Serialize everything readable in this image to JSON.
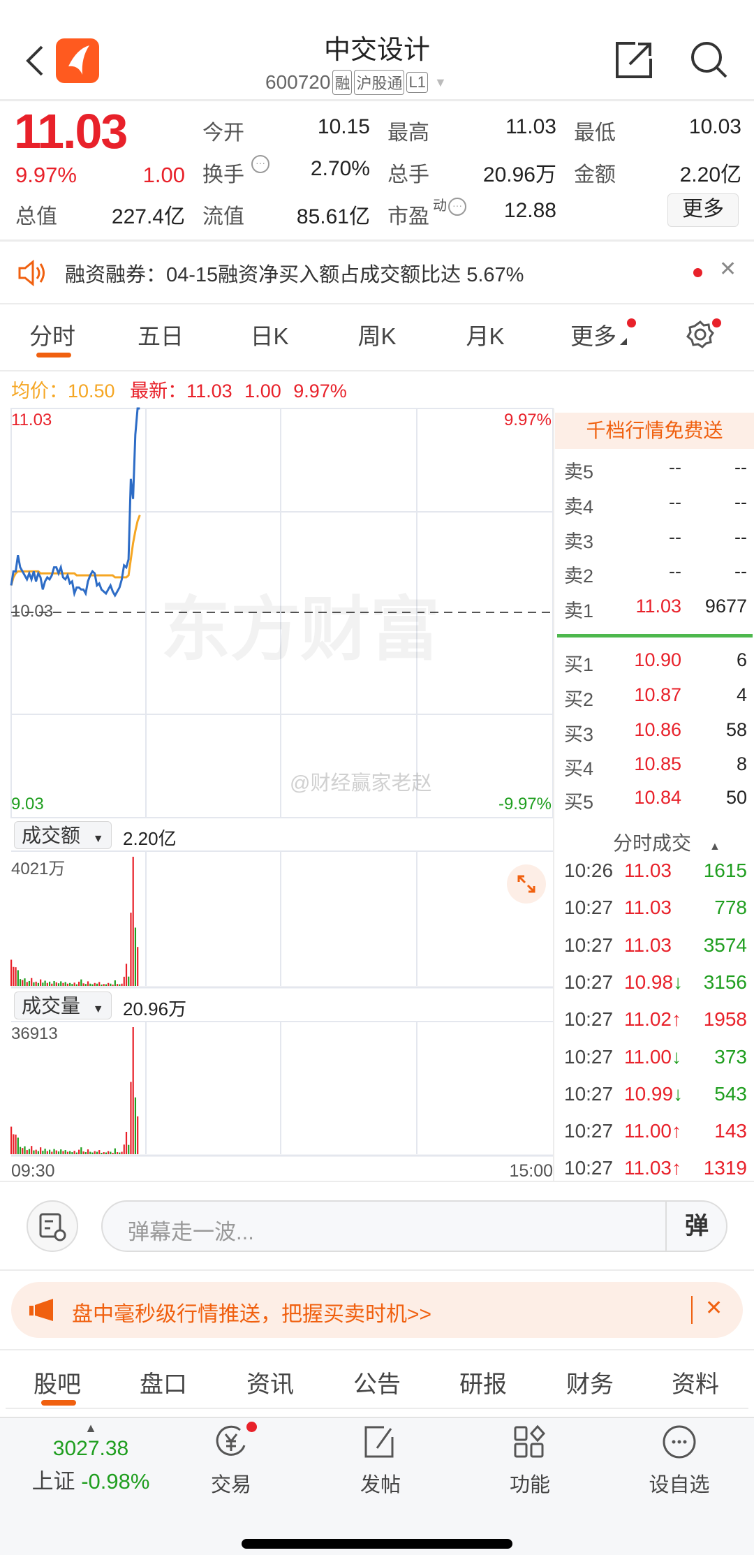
{
  "header": {
    "title": "中交设计",
    "code": "600720",
    "tags": [
      "融",
      "沪股通",
      "L1"
    ]
  },
  "quote": {
    "price": "11.03",
    "change_pct": "9.97%",
    "change": "1.00",
    "open_label": "今开",
    "open": "10.15",
    "high_label": "最高",
    "high": "11.03",
    "low_label": "最低",
    "low": "10.03",
    "turnover_label": "换手",
    "turnover": "2.70%",
    "volume_label": "总手",
    "volume": "20.96万",
    "amount_label": "金额",
    "amount": "2.20亿",
    "mcap_label": "总值",
    "mcap": "227.4亿",
    "float_label": "流值",
    "float": "85.61亿",
    "pe_label": "市盈",
    "pe_sup": "动",
    "pe": "12.88",
    "more": "更多"
  },
  "notice": {
    "text": "融资融券：04-15融资净买入额占成交额比达 5.67%"
  },
  "tabs": [
    {
      "label": "分时"
    },
    {
      "label": "五日"
    },
    {
      "label": "日K"
    },
    {
      "label": "周K"
    },
    {
      "label": "月K"
    },
    {
      "label": "更多"
    }
  ],
  "legend": {
    "avg_label": "均价：",
    "avg": "10.50",
    "last_label": "最新：",
    "last": "11.03",
    "change": "1.00",
    "pct": "9.97%"
  },
  "chart_data": [
    {
      "type": "line",
      "ylim": [
        9.03,
        11.03
      ],
      "y_top_label": "11.03",
      "y_mid_label": "10.03",
      "y_bottom_label": "9.03",
      "pct_top": "9.97%",
      "pct_bottom": "-9.97%",
      "x_start": "09:30",
      "x_end": "15:00",
      "minutes_total": 240,
      "series": [
        {
          "color": "#2d6cc6",
          "values": [
            10.15,
            10.22,
            10.22,
            10.3,
            10.24,
            10.22,
            10.2,
            10.18,
            10.21,
            10.18,
            10.22,
            10.17,
            10.21,
            10.19,
            10.13,
            10.17,
            10.19,
            10.18,
            10.2,
            10.24,
            10.24,
            10.21,
            10.24,
            10.19,
            10.18,
            10.2,
            10.16,
            10.17,
            10.11,
            10.14,
            10.14,
            10.13,
            10.13,
            10.11,
            10.17,
            10.2,
            10.22,
            10.21,
            10.15,
            10.16,
            10.13,
            10.12,
            10.11,
            10.13,
            10.15,
            10.12,
            10.1,
            10.12,
            10.14,
            10.18,
            10.25,
            10.24,
            10.28,
            10.68,
            10.58,
            10.9,
            11.03,
            11.03
          ]
        },
        {
          "color": "#f5a623",
          "values": [
            10.15,
            10.19,
            10.21,
            10.22,
            10.22,
            10.22,
            10.22,
            10.22,
            10.22,
            10.22,
            10.22,
            10.22,
            10.22,
            10.21,
            10.21,
            10.21,
            10.21,
            10.21,
            10.21,
            10.21,
            10.21,
            10.21,
            10.21,
            10.21,
            10.21,
            10.21,
            10.21,
            10.21,
            10.21,
            10.2,
            10.2,
            10.2,
            10.2,
            10.2,
            10.2,
            10.2,
            10.2,
            10.2,
            10.2,
            10.2,
            10.2,
            10.2,
            10.2,
            10.2,
            10.2,
            10.2,
            10.19,
            10.19,
            10.19,
            10.19,
            10.19,
            10.19,
            10.2,
            10.28,
            10.36,
            10.42,
            10.47,
            10.5
          ]
        }
      ]
    },
    {
      "type": "bar",
      "selector": "成交额",
      "total": "2.20亿",
      "max_label": "4021万",
      "ymax": 4021,
      "values": [
        816,
        592,
        583,
        490,
        214,
        184,
        235,
        122,
        153,
        245,
        112,
        133,
        92,
        204,
        102,
        163,
        92,
        133,
        71,
        153,
        112,
        82,
        143,
        92,
        122,
        71,
        92,
        61,
        102,
        51,
        132,
        203,
        81,
        61,
        143,
        71,
        51,
        92,
        71,
        122,
        41,
        61,
        51,
        92,
        71,
        41,
        173,
        61,
        51,
        71,
        286,
        690,
        290,
        2280,
        4021,
        1815,
        1213
      ]
    },
    {
      "type": "bar",
      "selector": "成交量",
      "total": "20.96万",
      "max_label": "36913",
      "ymax": 36913,
      "values": [
        8000,
        5800,
        5700,
        4800,
        2100,
        1800,
        2300,
        1200,
        1500,
        2400,
        1100,
        1300,
        900,
        2000,
        1000,
        1600,
        900,
        1300,
        700,
        1500,
        1100,
        800,
        1400,
        900,
        1200,
        700,
        900,
        600,
        1000,
        500,
        1300,
        2000,
        800,
        600,
        1400,
        700,
        500,
        900,
        700,
        1200,
        400,
        600,
        500,
        900,
        700,
        400,
        1700,
        600,
        500,
        700,
        2800,
        6500,
        2700,
        21000,
        36913,
        16500,
        11000
      ]
    }
  ],
  "bar_colors": [
    "r",
    "r",
    "r",
    "g",
    "g",
    "r",
    "g",
    "r",
    "g",
    "r",
    "g",
    "r",
    "g",
    "r",
    "g",
    "g",
    "r",
    "g",
    "r",
    "g",
    "r",
    "g",
    "g",
    "r",
    "g",
    "r",
    "g",
    "g",
    "r",
    "g",
    "r",
    "g",
    "r",
    "g",
    "r",
    "g",
    "g",
    "r",
    "g",
    "r",
    "g",
    "r",
    "g",
    "r",
    "g",
    "r",
    "g",
    "r",
    "g",
    "r",
    "r",
    "r",
    "g",
    "r",
    "r",
    "g",
    "r"
  ],
  "colors": {
    "up": "#e8212a",
    "down": "#1f9e1f",
    "accent": "#f0600f"
  },
  "watermark": "东方财富",
  "weibo_watermark": "@财经赢家老赵",
  "orderbook": {
    "banner": "千档行情免费送",
    "asks": [
      {
        "label": "卖5",
        "price": "--",
        "vol": "--"
      },
      {
        "label": "卖4",
        "price": "--",
        "vol": "--"
      },
      {
        "label": "卖3",
        "price": "--",
        "vol": "--"
      },
      {
        "label": "卖2",
        "price": "--",
        "vol": "--"
      },
      {
        "label": "卖1",
        "price": "11.03",
        "vol": "9677"
      }
    ],
    "bids": [
      {
        "label": "买1",
        "price": "10.90",
        "vol": "6"
      },
      {
        "label": "买2",
        "price": "10.87",
        "vol": "4"
      },
      {
        "label": "买3",
        "price": "10.86",
        "vol": "58"
      },
      {
        "label": "买4",
        "price": "10.85",
        "vol": "8"
      },
      {
        "label": "买5",
        "price": "10.84",
        "vol": "50"
      }
    ]
  },
  "trades": {
    "title": "分时成交",
    "rows": [
      {
        "time": "10:26",
        "price": "11.03",
        "arrow": "",
        "vol": "1615",
        "dir": "down"
      },
      {
        "time": "10:27",
        "price": "11.03",
        "arrow": "",
        "vol": "778",
        "dir": "down"
      },
      {
        "time": "10:27",
        "price": "11.03",
        "arrow": "",
        "vol": "3574",
        "dir": "down"
      },
      {
        "time": "10:27",
        "price": "10.98",
        "arrow": "↓",
        "vol": "3156",
        "dir": "down"
      },
      {
        "time": "10:27",
        "price": "11.02",
        "arrow": "↑",
        "vol": "1958",
        "dir": "up"
      },
      {
        "time": "10:27",
        "price": "11.00",
        "arrow": "↓",
        "vol": "373",
        "dir": "down"
      },
      {
        "time": "10:27",
        "price": "10.99",
        "arrow": "↓",
        "vol": "543",
        "dir": "down"
      },
      {
        "time": "10:27",
        "price": "11.00",
        "arrow": "↑",
        "vol": "143",
        "dir": "up"
      },
      {
        "time": "10:27",
        "price": "11.03",
        "arrow": "↑",
        "vol": "1319",
        "dir": "up"
      }
    ]
  },
  "danmu": {
    "placeholder": "弹幕走一波...",
    "send": "弹"
  },
  "promo": {
    "text": "盘中毫秒级行情推送，把握买卖时机>>"
  },
  "subtabs": [
    {
      "label": "股吧"
    },
    {
      "label": "盘口"
    },
    {
      "label": "资讯"
    },
    {
      "label": "公告"
    },
    {
      "label": "研报"
    },
    {
      "label": "财务"
    },
    {
      "label": "资料"
    }
  ],
  "bottom": {
    "index_value": "3027.38",
    "index_name": "上证",
    "index_pct": "-0.98%",
    "items": [
      {
        "label": "交易",
        "icon": "trade-yuan-icon"
      },
      {
        "label": "发帖",
        "icon": "post-edit-icon"
      },
      {
        "label": "功能",
        "icon": "grid-icon"
      },
      {
        "label": "设自选",
        "icon": "more-circle-icon"
      }
    ]
  }
}
